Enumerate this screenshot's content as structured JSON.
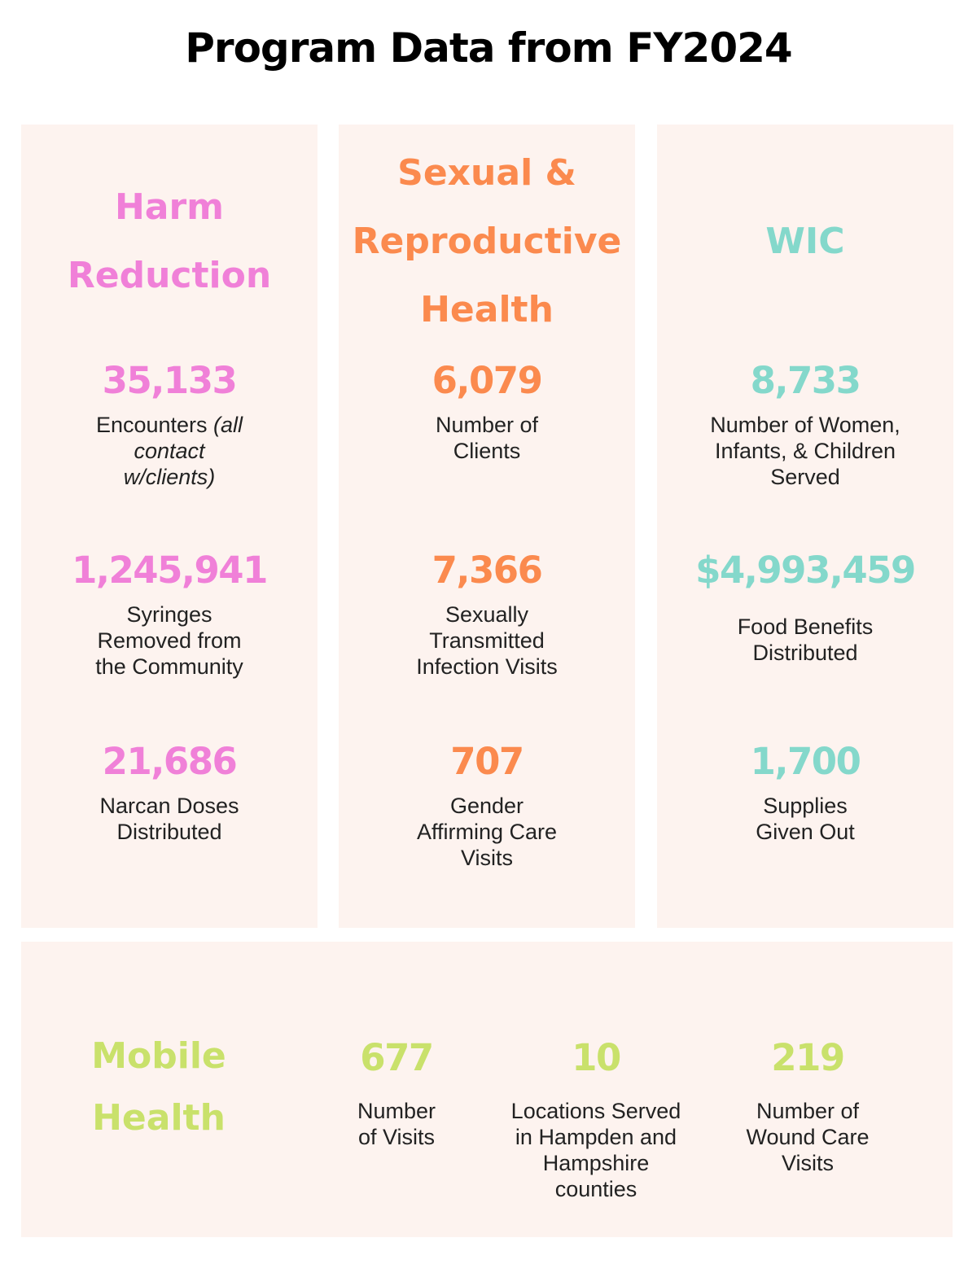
{
  "title": "Program Data from FY2024",
  "programs": [
    {
      "heading": "Harm\nReduction",
      "color": "#f080d8",
      "stats": [
        {
          "value": "35,133",
          "label": "Encounters",
          "note": "(all contact w/clients)"
        },
        {
          "value": "1,245,941",
          "label": "Syringes\nRemoved from\nthe Community"
        },
        {
          "value": "21,686",
          "label": "Narcan Doses\nDistributed"
        }
      ]
    },
    {
      "heading": "Sexual &\nReproductive\nHealth",
      "color": "#fb8a4e",
      "stats": [
        {
          "value": "6,079",
          "label": "Number of\nClients"
        },
        {
          "value": "7,366",
          "label": "Sexually\nTransmitted\nInfection Visits"
        },
        {
          "value": "707",
          "label": "Gender\nAffirming Care\nVisits"
        }
      ]
    },
    {
      "heading": "WIC",
      "color": "#84d8cb",
      "stats": [
        {
          "value": "8,733",
          "label": "Number of Women,\nInfants, & Children\nServed"
        },
        {
          "value": "$4,993,459",
          "label": "Food Benefits\nDistributed"
        },
        {
          "value": "1,700",
          "label": "Supplies\nGiven Out"
        }
      ]
    }
  ],
  "mobile": {
    "heading": "Mobile\nHealth",
    "color": "#c9e16b",
    "stats": [
      {
        "value": "677",
        "label": "Number\nof Visits"
      },
      {
        "value": "10",
        "label": "Locations Served\nin Hampden and\nHampshire\ncounties"
      },
      {
        "value": "219",
        "label": "Number of\nWound Care\nVisits"
      }
    ]
  }
}
